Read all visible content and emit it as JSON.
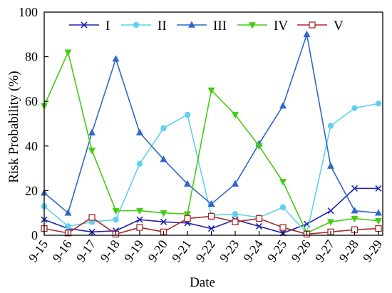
{
  "chart_data": {
    "type": "line",
    "categories": [
      "9-15",
      "9-16",
      "9-17",
      "9-18",
      "9-19",
      "9-20",
      "9-21",
      "9-22",
      "9-23",
      "9-24",
      "9-25",
      "9-26",
      "9-27",
      "9-28",
      "9-29"
    ],
    "xlabel": "Date",
    "ylabel": "Risk Probability (%)",
    "ylim": [
      0,
      100
    ],
    "yticks": [
      0,
      20,
      40,
      60,
      80,
      100
    ],
    "grid": false,
    "legend": "top",
    "series": [
      {
        "name": "I",
        "color": "#2222b0",
        "marker": "cross",
        "values": [
          7,
          3,
          1.5,
          2,
          7,
          6,
          5.5,
          3,
          7,
          4,
          1,
          5,
          11,
          21,
          21
        ]
      },
      {
        "name": "II",
        "color": "#5fd1ef",
        "marker": "circle",
        "values": [
          13,
          4,
          6,
          7,
          32,
          48,
          54,
          9,
          9.5,
          8,
          12.5,
          1,
          49,
          57,
          59
        ]
      },
      {
        "name": "III",
        "color": "#2f67c8",
        "marker": "triangle-up",
        "values": [
          19,
          10,
          46,
          79,
          46,
          34,
          23,
          14,
          23,
          41,
          58,
          90,
          31,
          11,
          10
        ]
      },
      {
        "name": "IV",
        "color": "#44cc11",
        "marker": "triangle-down",
        "values": [
          58,
          82,
          38,
          11,
          11,
          10,
          9.5,
          65,
          54,
          40,
          24,
          1,
          6,
          7.5,
          6.5
        ]
      },
      {
        "name": "V",
        "color": "#a52a2a",
        "marker": "square-open",
        "values": [
          3,
          1,
          8,
          0.5,
          3.5,
          1.5,
          7.5,
          8.5,
          6,
          7.5,
          3.5,
          0.5,
          1.5,
          2.5,
          3
        ]
      }
    ]
  }
}
